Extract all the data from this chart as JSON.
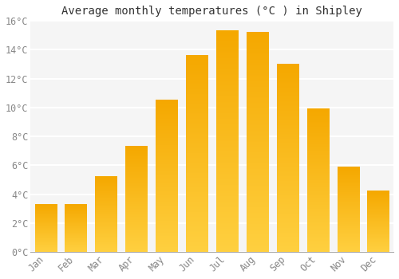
{
  "title": "Average monthly temperatures (°C ) in Shipley",
  "months": [
    "Jan",
    "Feb",
    "Mar",
    "Apr",
    "May",
    "Jun",
    "Jul",
    "Aug",
    "Sep",
    "Oct",
    "Nov",
    "Dec"
  ],
  "temperatures": [
    3.3,
    3.3,
    5.2,
    7.3,
    10.5,
    13.6,
    15.3,
    15.2,
    13.0,
    9.9,
    5.9,
    4.2
  ],
  "bar_color_bottom": "#FFD040",
  "bar_color_top": "#F5A800",
  "ylim": [
    0,
    16
  ],
  "yticks": [
    0,
    2,
    4,
    6,
    8,
    10,
    12,
    14,
    16
  ],
  "background_color": "#ffffff",
  "plot_bg_color": "#f5f5f5",
  "grid_color": "#ffffff",
  "title_fontsize": 10,
  "tick_fontsize": 8.5,
  "font_family": "monospace",
  "tick_color": "#888888",
  "bar_width": 0.72
}
